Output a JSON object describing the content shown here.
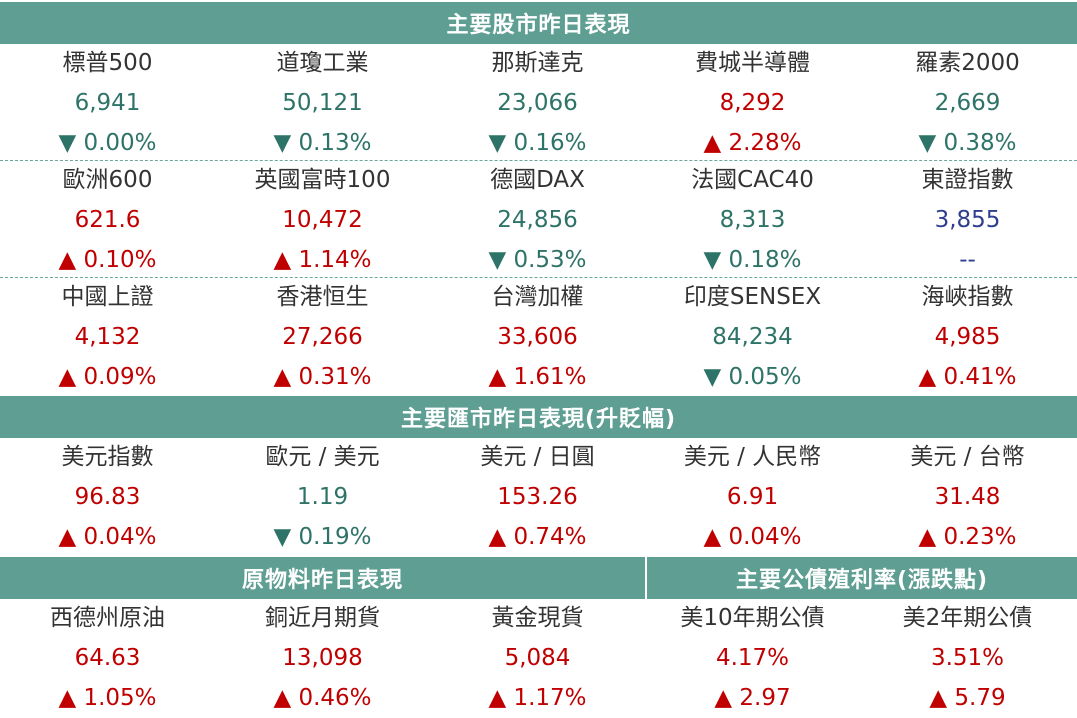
{
  "sections": {
    "stocks": "主要股市昨日表現",
    "fx": "主要匯市昨日表現(升貶幅)",
    "commodities": "原物料昨日表現",
    "bonds": "主要公債殖利率(漲跌點)"
  },
  "colors": {
    "header_bg": "#5f9f93",
    "up": "#c00000",
    "down": "#2e7367",
    "neutral": "#2f3f8f"
  },
  "rows": [
    [
      {
        "name": "標普500",
        "value": "6,941",
        "change": "▼ 0.00%",
        "dir": "down"
      },
      {
        "name": "道瓊工業",
        "value": "50,121",
        "change": "▼ 0.13%",
        "dir": "down"
      },
      {
        "name": "那斯達克",
        "value": "23,066",
        "change": "▼ 0.16%",
        "dir": "down"
      },
      {
        "name": "費城半導體",
        "value": "8,292",
        "change": "▲ 2.28%",
        "dir": "up"
      },
      {
        "name": "羅素2000",
        "value": "2,669",
        "change": "▼ 0.38%",
        "dir": "down"
      }
    ],
    [
      {
        "name": "歐洲600",
        "value": "621.6",
        "change": "▲ 0.10%",
        "dir": "up"
      },
      {
        "name": "英國富時100",
        "value": "10,472",
        "change": "▲ 1.14%",
        "dir": "up"
      },
      {
        "name": "德國DAX",
        "value": "24,856",
        "change": "▼ 0.53%",
        "dir": "down"
      },
      {
        "name": "法國CAC40",
        "value": "8,313",
        "change": "▼ 0.18%",
        "dir": "down"
      },
      {
        "name": "東證指數",
        "value": "3,855",
        "change": "--",
        "dir": "neutral"
      }
    ],
    [
      {
        "name": "中國上證",
        "value": "4,132",
        "change": "▲ 0.09%",
        "dir": "up"
      },
      {
        "name": "香港恒生",
        "value": "27,266",
        "change": "▲ 0.31%",
        "dir": "up"
      },
      {
        "name": "台灣加權",
        "value": "33,606",
        "change": "▲ 1.61%",
        "dir": "up"
      },
      {
        "name": "印度SENSEX",
        "value": "84,234",
        "change": "▼ 0.05%",
        "dir": "down"
      },
      {
        "name": "海峽指數",
        "value": "4,985",
        "change": "▲ 0.41%",
        "dir": "up"
      }
    ],
    [
      {
        "name": "美元指數",
        "value": "96.83",
        "change": "▲ 0.04%",
        "dir": "up"
      },
      {
        "name": "歐元 / 美元",
        "value": "1.19",
        "change": "▼ 0.19%",
        "dir": "down"
      },
      {
        "name": "美元 / 日圓",
        "value": "153.26",
        "change": "▲ 0.74%",
        "dir": "up"
      },
      {
        "name": "美元 / 人民幣",
        "value": "6.91",
        "change": "▲ 0.04%",
        "dir": "up"
      },
      {
        "name": "美元 / 台幣",
        "value": "31.48",
        "change": "▲ 0.23%",
        "dir": "up"
      }
    ],
    [
      {
        "name": "西德州原油",
        "value": "64.63",
        "change": "▲ 1.05%",
        "dir": "up"
      },
      {
        "name": "銅近月期貨",
        "value": "13,098",
        "change": "▲ 0.46%",
        "dir": "up"
      },
      {
        "name": "黃金現貨",
        "value": "5,084",
        "change": "▲ 1.17%",
        "dir": "up"
      },
      {
        "name": "美10年期公債",
        "value": "4.17%",
        "change": "▲ 2.97",
        "dir": "up"
      },
      {
        "name": "美2年期公債",
        "value": "3.51%",
        "change": "▲ 5.79",
        "dir": "up"
      }
    ]
  ]
}
